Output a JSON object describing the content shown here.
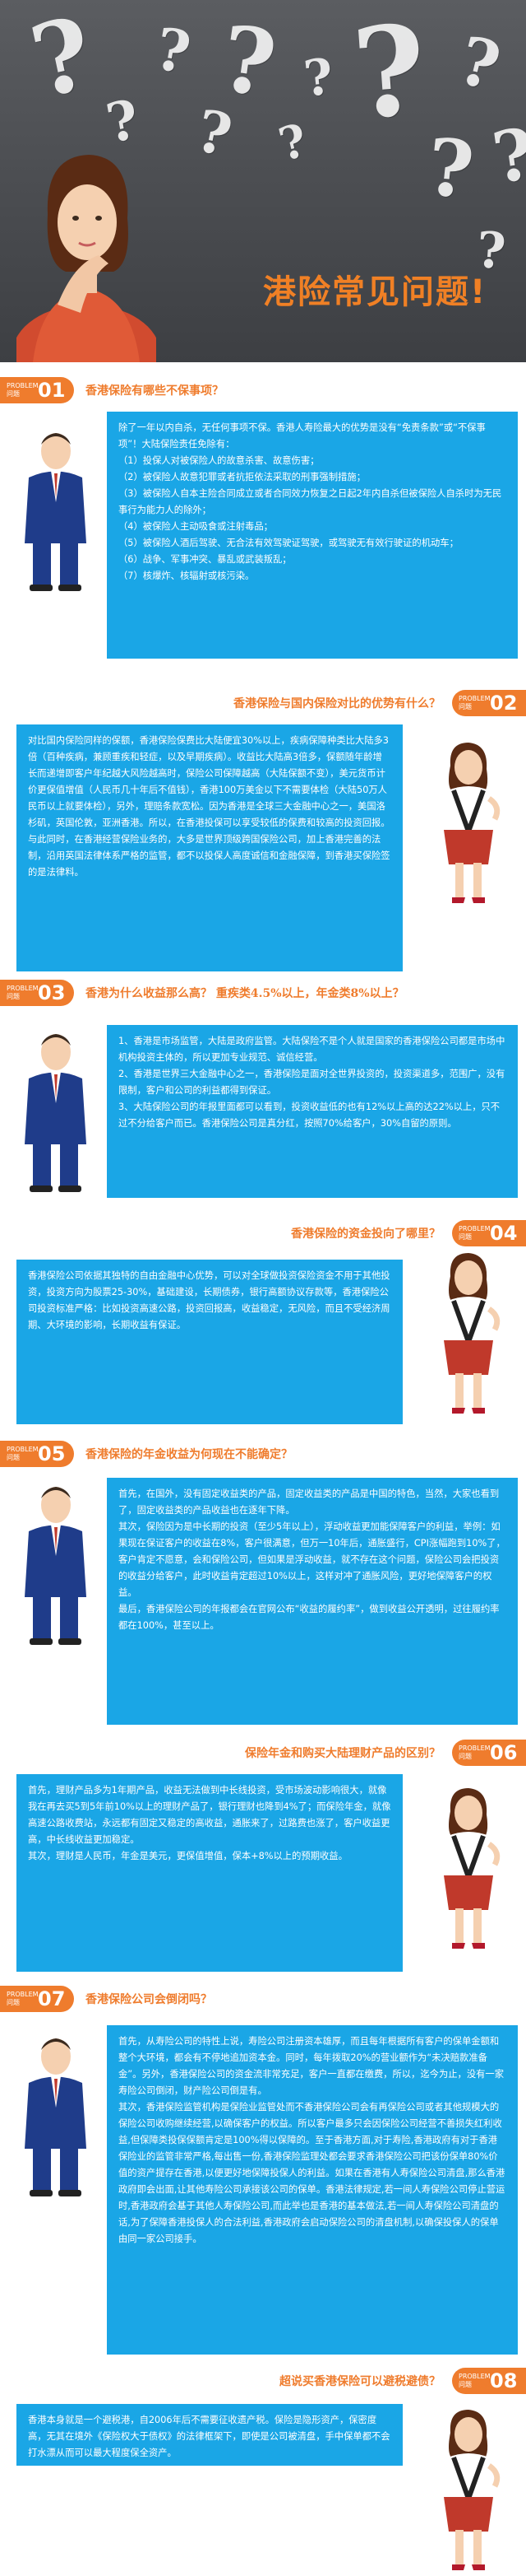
{
  "hero": {
    "title": "港险常见问题!",
    "marks": [
      {
        "ch": "?",
        "size": 120,
        "rot": -12
      },
      {
        "ch": "?",
        "size": 70,
        "rot": 10
      },
      {
        "ch": "?",
        "size": 110,
        "rot": 8
      },
      {
        "ch": "?",
        "size": 60,
        "rot": -6
      },
      {
        "ch": "?",
        "size": 150,
        "rot": -4
      },
      {
        "ch": "?",
        "size": 80,
        "rot": 14
      },
      {
        "ch": "?",
        "size": 65,
        "rot": -10
      },
      {
        "ch": "?",
        "size": 95,
        "rot": 6
      },
      {
        "ch": "?",
        "size": 55,
        "rot": -14
      },
      {
        "ch": "?",
        "size": 85,
        "rot": -8
      },
      {
        "ch": "?",
        "size": 70,
        "rot": 12
      },
      {
        "ch": "?",
        "size": 60,
        "rot": 4
      }
    ]
  },
  "badge_label": [
    "PROBLEM",
    "问题"
  ],
  "questions": [
    {
      "num": "01",
      "question": "香港保险有哪些不保事项？",
      "answer": [
        "除了一年以内自杀，无任何事项不保。香港人寿险最大的优势是没有“免责条款”或“不保事项”！大陆保险责任免除有：",
        "（1）投保人对被保险人的故意杀害、故意伤害；",
        "（2）被保险人故意犯罪或者抗拒依法采取的刑事强制措施；",
        "（3）被保险人自本主险合同成立或者合同效力恢复之日起2年内自杀但被保险人自杀时为无民事行为能力人的除外；",
        "（4）被保险人主动吸食或注射毒品；",
        "（5）被保险人酒后驾驶、无合法有效驾驶证驾驶，或驾驶无有效行驶证的机动车；",
        "（6）战争、军事冲突、暴乱或武装叛乱；",
        "（7）核爆炸、核辐射或核污染。"
      ]
    },
    {
      "num": "02",
      "question": "香港保险与国内保险对比的优势有什么？",
      "answer": [
        "对比国内保险同样的保额，香港保险保费比大陆便宜30%以上，疾病保障种类比大陆多3倍（百种疾病，兼顾重疾和轻症，以及早期疾病）。收益比大陆高3倍多，保额随年龄增长而递增即客户年纪越大风险越高时，保险公司保障越高（大陆保额不变），美元货币计价更保值增值（人民币几十年后不值钱），香港100万美金以下不需要体检（大陆50万人民币以上就要体检），另外，理赔条款宽松。因为香港是全球三大金融中心之一，美国洛杉矶，英国伦敦，亚洲香港。所以，在香港投保可以享受较低的保费和较高的投资回报。与此同时，在香港经营保险业务的，大多是世界顶级跨国保险公司，加上香港完善的法制，沿用英国法律体系严格的监管，都不以投保人高度诚信和金融保障，到香港买保险签的是法律料。"
      ]
    },
    {
      "num": "03",
      "question": "香港为什么收益那么高？ 重疾类4.5%以上，年金类8%以上？",
      "answer": [
        "1、香港是市场监管，大陆是政府监管。大陆保险不是个人就是国家的香港保险公司都是市场中机构投资主体的，所以更加专业规范、诚信经营。",
        "2、香港是世界三大金融中心之一，香港保险是面对全世界投资的，投资渠道多，范围广，没有限制，客户和公司的利益都得到保证。",
        "3、大陆保险公司的年报里面都可以看到，投资收益低的也有12%以上高的达22%以上，只不过不分给客户而已。香港保险公司是真分红，按照70%给客户，30%自留的原则。"
      ]
    },
    {
      "num": "04",
      "question": "香港保险的资金投向了哪里？",
      "answer": [
        "香港保险公司依据其独特的自由金融中心优势，可以对全球做投资保险资金不用于其他投资，投资方向为股票25-30%，基础建设，长期债券，银行高额协议存款等，香港保险公司投资标准严格：比如投资高速公路，投资回报高，收益稳定，无风险，而且不受经济周期、大环境的影响，长期收益有保证。"
      ]
    },
    {
      "num": "05",
      "question": "香港保险的年金收益为何现在不能确定？",
      "answer": [
        "首先，在国外，没有固定收益类的产品，固定收益类的产品是中国的特色，当然，大家也看到了，固定收益类的产品收益也在逐年下降。",
        "其次，保险因为是中长期的投资（至少5年以上），浮动收益更加能保障客户的利益，举例：如果现在保证客户的收益在8%，客户很满意，但万一10年后，通胀盛行，CPI涨幅跑到10%了，客户肯定不愿意，会和保险公司，但如果是浮动收益，就不存在这个问题，保险公司会把投资的收益分给客户，此时收益肯定超过10%以上，这样对冲了通胀风险，更好地保障客户的权益。",
        "最后，香港保险公司的年报都会在官网公布“收益的履约率”，做到收益公开透明，过往履约率都在100%，甚至以上。"
      ]
    },
    {
      "num": "06",
      "question": "保险年金和购买大陆理财产品的区别？",
      "answer": [
        "首先，理财产品多为1年期产品，收益无法做到中长线投资，受市场波动影响很大，就像我在再去买5到5年前10%以上的理财产品了，银行理财也降到4%了；而保险年金，就像高速公路收费站，永远都有固定又稳定的高收益，通胀来了，过路费也涨了，客户收益更高，中长线收益更加稳定。",
        "其次，理财是人民币，年金是美元，更保值增值，保本+8%以上的预期收益。"
      ]
    },
    {
      "num": "07",
      "question": "香港保险公司会倒闭吗？",
      "answer": [
        "首先，从寿险公司的特性上说，寿险公司注册资本雄厚，而且每年根据所有客户的保单金额和整个大环境，都会有不停地追加资本金。同时，每年拨取20%的营业额作为“未决赔款准备金”。另外，香港保险公司的资金流非常充足，客户一直都在缴费，所以，迄今为止，没有一家寿险公司倒闭，财产险公司倒是有。",
        "其次，香港保险监管机构是保险业监管处而不香港保险公司会有再保险公司或者其他规模大的保险公司收购继续经营,以确保客户的权益。所以客户最多只会因保险公司经营不善损失红利收益,但保障类投保保额肯定是100%得以保障的。至于香港方面,对于寿险,香港政府有对于香港保险业的监管非常严格,每出售一份,香港保险监理处都会要求香港保险公司把该份保单80%价值的资产提存在香港,以便更好地保障投保人的利益。如果在香港有人寿保险公司清盘,那么香港政府即会出面,让其他寿险公司承接该公司的保单。香港法律规定,若一间人寿保险公司停止营运时,香港政府会基于其他人寿保险公司,而此举也是香港的基本做法,若一间人寿保险公司清盘的话,为了保障香港投保人的合法利益,香港政府会启动保险公司的清盘机制,以确保投保人的保单由同一家公司接手。"
      ]
    },
    {
      "num": "08",
      "question": "超说买香港保险可以避税避债？",
      "answer": [
        "香港本身就是一个避税港，自2006年后不需要征收遗产税。保险是隐形资产，保密度高，无其在境外《保险权大于债权》的法律框架下，即使是公司被清盘，手中保单都不会打水漂从而可以最大程度保全资产。"
      ]
    }
  ]
}
